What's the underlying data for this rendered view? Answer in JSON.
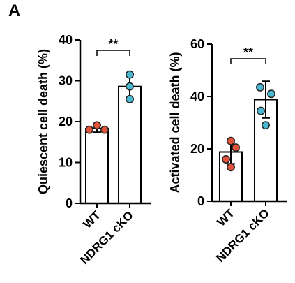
{
  "panel_label": "A",
  "colors": {
    "wt": "#e0533a",
    "cko": "#4bb8cf",
    "axis": "#000000",
    "bar_fill": "#ffffff"
  },
  "chart_data": [
    {
      "type": "bar",
      "categories": [
        "WT",
        "NDRG1 cKO"
      ],
      "ylabel": "Quiescent cell death (%)",
      "ylim": [
        0,
        40
      ],
      "yticks": [
        0,
        10,
        20,
        30,
        40
      ],
      "values": [
        18.3,
        28.6
      ],
      "errors": [
        0.9,
        3.0
      ],
      "points": [
        [
          18.0,
          19.1,
          18.0
        ],
        [
          31.5,
          28.6,
          25.5
        ]
      ],
      "significance": "**"
    },
    {
      "type": "bar",
      "categories": [
        "WT",
        "NDRG1 cKO"
      ],
      "ylabel": "Activated cell death (%)",
      "ylim": [
        0,
        60
      ],
      "yticks": [
        0,
        20,
        40,
        60
      ],
      "values": [
        18.8,
        38.8
      ],
      "errors": [
        4.5,
        7.0
      ],
      "points": [
        [
          23.0,
          20.5,
          16.0,
          13.0
        ],
        [
          43.5,
          41.0,
          34.5,
          29.0
        ]
      ],
      "significance": "**"
    }
  ]
}
